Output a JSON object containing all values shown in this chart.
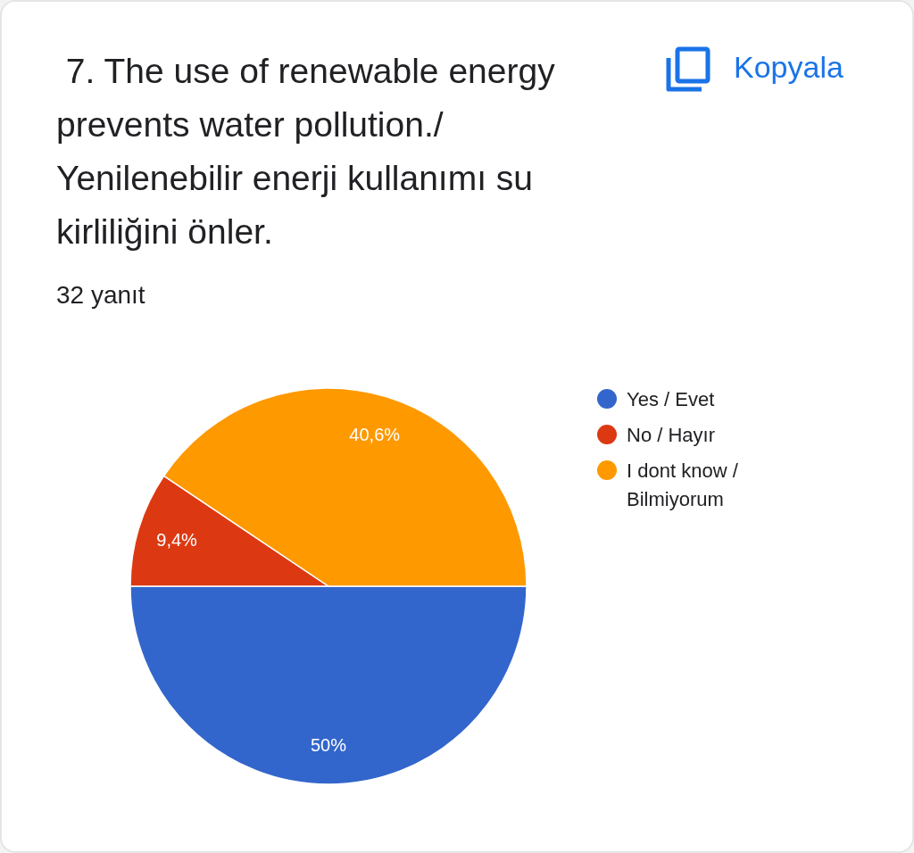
{
  "chart_data": {
    "type": "pie",
    "title": " 7. The use of renewable energy prevents water pollution./ Yenilenebilir enerji kullanımı su kirliliğini önler.",
    "subtitle": "32 yanıt",
    "annotations": [
      "Kopyala"
    ],
    "categories": [
      "Yes / Evet",
      "No / Hayır",
      "I dont know / Bilmiyorum"
    ],
    "values": [
      50,
      9.4,
      40.6
    ],
    "value_labels": [
      "50%",
      "9,4%",
      "40,6%"
    ],
    "colors": [
      "#3366cc",
      "#dc3912",
      "#ff9900"
    ],
    "legend": "right"
  }
}
